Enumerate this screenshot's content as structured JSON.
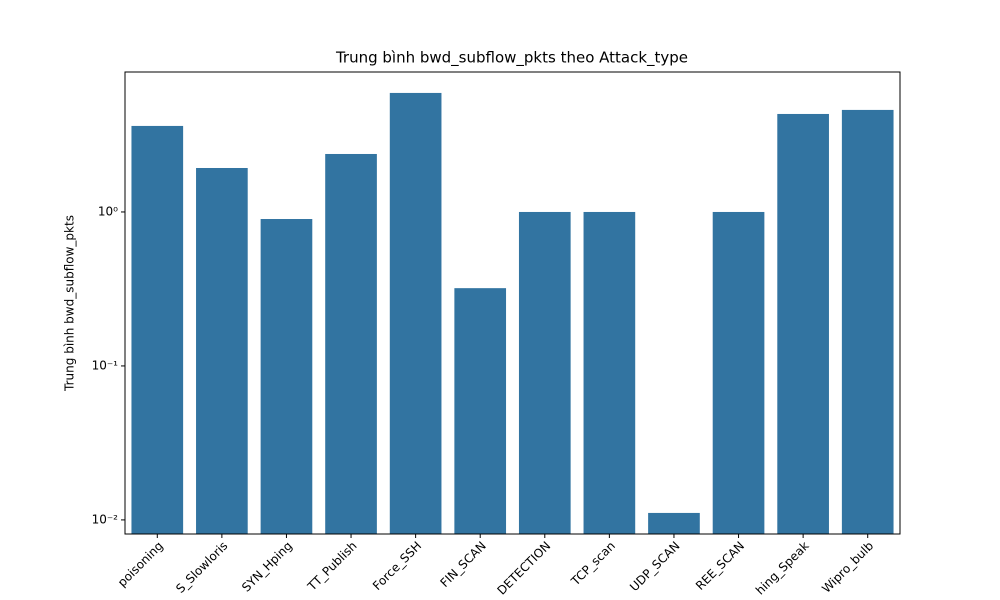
{
  "chart_data": {
    "type": "bar",
    "title": "Trung bình bwd_subflow_pkts theo Attack_type",
    "ylabel": "Trung bình bwd_subflow_pkts",
    "categories": [
      "poisoning",
      "S_Slowloris",
      "SYN_Hping",
      "TT_Publish",
      "Force_SSH",
      "FIN_SCAN",
      "DETECTION",
      "TCP_scan",
      "UDP_SCAN",
      "REE_SCAN",
      "hing_Speak",
      "Wipro_bulb"
    ],
    "values": [
      3.62,
      1.93,
      0.9,
      2.38,
      5.93,
      0.32,
      1.0,
      1.0,
      0.0111,
      1.0,
      4.33,
      4.6
    ],
    "color": "#3274a1",
    "log_scale": true,
    "ylim": [
      0.0081,
      8.11
    ],
    "yticks": [
      {
        "value": 0.01,
        "label": "10⁻²"
      },
      {
        "value": 0.1,
        "label": "10⁻¹"
      },
      {
        "value": 1,
        "label": "10⁰"
      }
    ]
  }
}
